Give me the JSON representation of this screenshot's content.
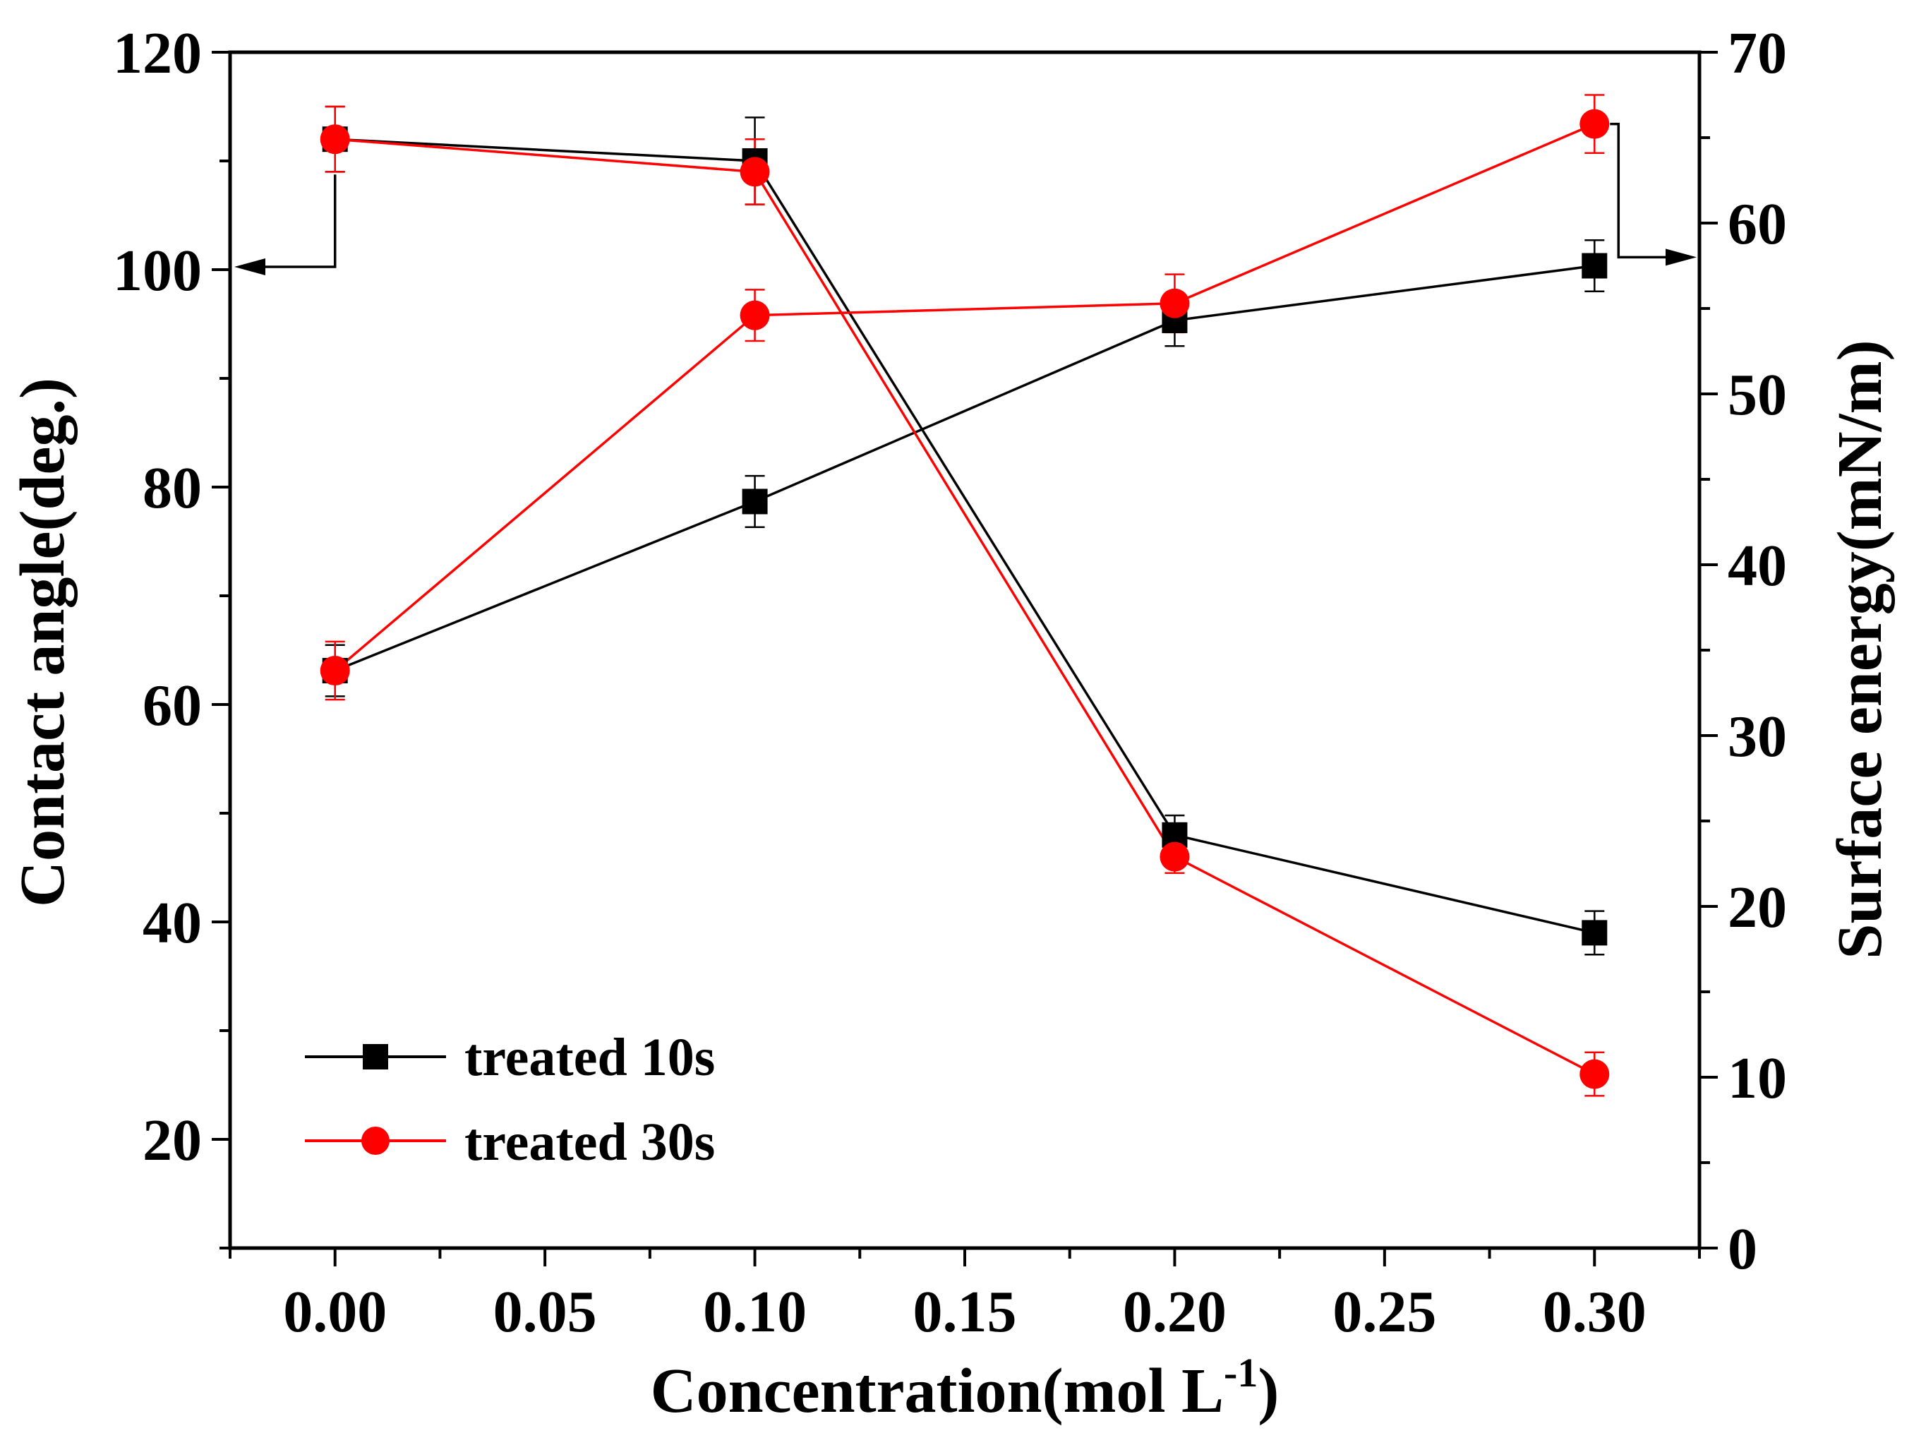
{
  "chart_data": {
    "type": "line",
    "title": "",
    "xlabel": "Concentration(mol L",
    "xlabel_superscript": "-1",
    "xlabel_suffix": ")",
    "ylabel_left": "Contact angle(deg.)",
    "ylabel_right": "Surface energy(mN/m)",
    "xlim": [
      -0.025,
      0.325
    ],
    "ylim_left": [
      10,
      120
    ],
    "ylim_right": [
      0,
      70
    ],
    "x_ticks": [
      0.0,
      0.05,
      0.1,
      0.15,
      0.2,
      0.25,
      0.3
    ],
    "x_tick_labels": [
      "0.00",
      "0.05",
      "0.10",
      "0.15",
      "0.20",
      "0.25",
      "0.30"
    ],
    "y_left_ticks": [
      20,
      40,
      60,
      80,
      100,
      120
    ],
    "y_left_tick_labels": [
      "20",
      "40",
      "60",
      "80",
      "100",
      "120"
    ],
    "y_right_ticks": [
      0,
      10,
      20,
      30,
      40,
      50,
      60,
      70
    ],
    "y_right_tick_labels": [
      "0",
      "10",
      "20",
      "30",
      "40",
      "50",
      "60",
      "70"
    ],
    "x": [
      0.0,
      0.1,
      0.2,
      0.3
    ],
    "series": [
      {
        "name": "treated 10s",
        "legend_label": "treated 10s",
        "color": "#000000",
        "marker": "square",
        "contact_angle": [
          112.0,
          110.0,
          48.0,
          39.0
        ],
        "contact_angle_error": [
          3.0,
          4.0,
          1.8,
          2.0
        ],
        "surface_energy": [
          33.8,
          43.7,
          54.3,
          57.5
        ],
        "surface_energy_error": [
          1.5,
          1.5,
          1.5,
          1.5
        ]
      },
      {
        "name": "treated 30s",
        "legend_label": "treated 30s",
        "color": "#ff0000",
        "marker": "circle",
        "contact_angle": [
          112.0,
          109.0,
          46.0,
          26.0
        ],
        "contact_angle_error": [
          3.0,
          3.0,
          1.5,
          2.0
        ],
        "surface_energy": [
          33.8,
          54.6,
          55.3,
          65.8
        ],
        "surface_energy_error": [
          1.7,
          1.5,
          1.7,
          1.7
        ]
      }
    ],
    "annotations": [
      {
        "type": "arrow",
        "points_to": "left axis",
        "from_x": 0.0,
        "from_value": 112
      },
      {
        "type": "arrow",
        "points_to": "right axis",
        "from_x": 0.3,
        "from_value": 65.8
      }
    ],
    "legend_position": "bottom-left",
    "grid": false
  }
}
